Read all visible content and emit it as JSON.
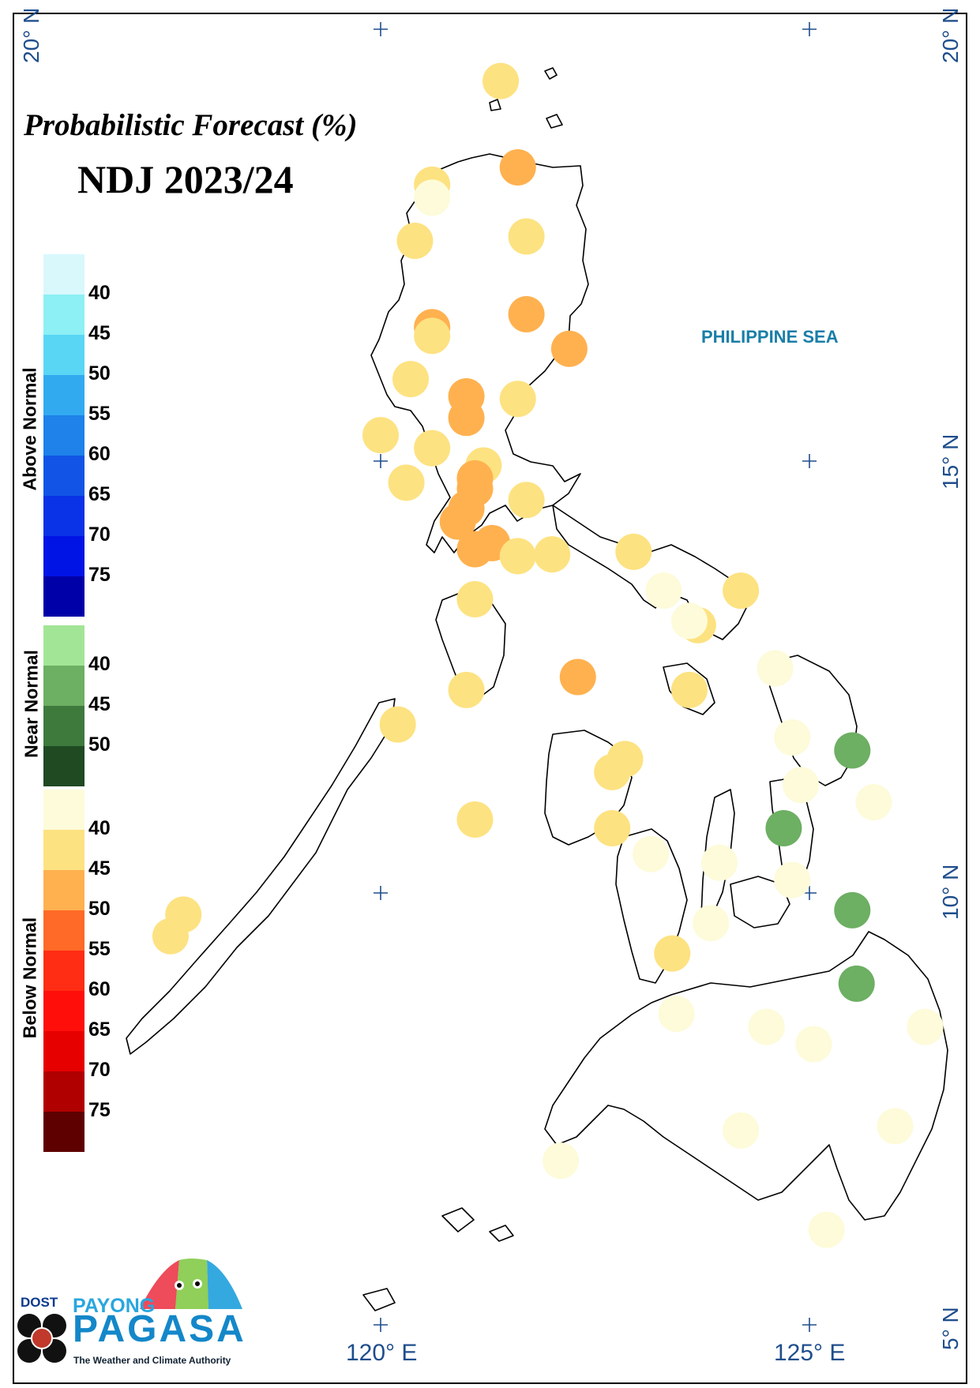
{
  "title": {
    "line1": "Probabilistic Forecast (%)",
    "line2": "NDJ 2023/24"
  },
  "sea_label": "PHILIPPINE SEA",
  "axes": {
    "lat_left_top": "20° N",
    "lat_right_top": "20° N",
    "lat_right_15": "15° N",
    "lat_right_10": "10° N",
    "lat_right_5": "5° N",
    "lon_120": "120° E",
    "lon_125": "125° E"
  },
  "legend": {
    "above": {
      "label": "Above Normal",
      "colors": [
        "#d9f8fc",
        "#8cf0f5",
        "#5ad6f5",
        "#32aaf0",
        "#1e82ea",
        "#1255e6",
        "#0a32e6",
        "#0014e6",
        "#0000a8"
      ],
      "ticks": [
        "40",
        "45",
        "50",
        "55",
        "60",
        "65",
        "70",
        "75"
      ]
    },
    "near": {
      "label": "Near Normal",
      "colors": [
        "#a3e596",
        "#6daf63",
        "#3f7a3d",
        "#1f4a22"
      ],
      "ticks": [
        "40",
        "45",
        "50"
      ]
    },
    "below": {
      "label": "Below Normal",
      "colors": [
        "#fdfbd9",
        "#fde281",
        "#ffb14f",
        "#ff6a28",
        "#ff2d14",
        "#ff0e0a",
        "#e60000",
        "#b00000",
        "#5e0000"
      ],
      "ticks": [
        "40",
        "45",
        "50",
        "55",
        "60",
        "65",
        "70",
        "75"
      ]
    }
  },
  "logo": {
    "dost": "DOST",
    "payong": "PAYONG",
    "pagasa": "PAGASA",
    "tagline": "The Weather and Climate Authority"
  },
  "stations": [
    {
      "lon": 121.4,
      "lat": 19.4,
      "category": "below",
      "pct": 42
    },
    {
      "lon": 121.6,
      "lat": 18.4,
      "category": "below",
      "pct": 47
    },
    {
      "lon": 120.6,
      "lat": 18.2,
      "category": "below",
      "pct": 42
    },
    {
      "lon": 120.6,
      "lat": 18.05,
      "category": "below",
      "pct": 38
    },
    {
      "lon": 120.4,
      "lat": 17.55,
      "category": "below",
      "pct": 42
    },
    {
      "lon": 121.7,
      "lat": 17.6,
      "category": "below",
      "pct": 42
    },
    {
      "lon": 121.7,
      "lat": 16.7,
      "category": "below",
      "pct": 47
    },
    {
      "lon": 120.6,
      "lat": 16.55,
      "category": "below",
      "pct": 47
    },
    {
      "lon": 120.6,
      "lat": 16.45,
      "category": "below",
      "pct": 42
    },
    {
      "lon": 122.2,
      "lat": 16.3,
      "category": "below",
      "pct": 47
    },
    {
      "lon": 120.35,
      "lat": 15.95,
      "category": "below",
      "pct": 42
    },
    {
      "lon": 121.0,
      "lat": 15.75,
      "category": "below",
      "pct": 47
    },
    {
      "lon": 121.6,
      "lat": 15.72,
      "category": "below",
      "pct": 42
    },
    {
      "lon": 121.0,
      "lat": 15.5,
      "category": "below",
      "pct": 47
    },
    {
      "lon": 120.0,
      "lat": 15.3,
      "category": "below",
      "pct": 42
    },
    {
      "lon": 120.6,
      "lat": 15.15,
      "category": "below",
      "pct": 42
    },
    {
      "lon": 121.2,
      "lat": 14.95,
      "category": "below",
      "pct": 42
    },
    {
      "lon": 121.1,
      "lat": 14.8,
      "category": "below",
      "pct": 47
    },
    {
      "lon": 121.1,
      "lat": 14.68,
      "category": "below",
      "pct": 47
    },
    {
      "lon": 120.3,
      "lat": 14.75,
      "category": "below",
      "pct": 42
    },
    {
      "lon": 121.7,
      "lat": 14.55,
      "category": "below",
      "pct": 42
    },
    {
      "lon": 121.0,
      "lat": 14.45,
      "category": "below",
      "pct": 47
    },
    {
      "lon": 120.9,
      "lat": 14.3,
      "category": "below",
      "pct": 47
    },
    {
      "lon": 121.3,
      "lat": 14.05,
      "category": "below",
      "pct": 47
    },
    {
      "lon": 121.1,
      "lat": 13.98,
      "category": "below",
      "pct": 47
    },
    {
      "lon": 121.6,
      "lat": 13.9,
      "category": "below",
      "pct": 42
    },
    {
      "lon": 122.0,
      "lat": 13.92,
      "category": "below",
      "pct": 42
    },
    {
      "lon": 122.95,
      "lat": 13.95,
      "category": "below",
      "pct": 42
    },
    {
      "lon": 121.1,
      "lat": 13.4,
      "category": "below",
      "pct": 42
    },
    {
      "lon": 123.3,
      "lat": 13.5,
      "category": "below",
      "pct": 38
    },
    {
      "lon": 124.2,
      "lat": 13.5,
      "category": "below",
      "pct": 42
    },
    {
      "lon": 123.7,
      "lat": 13.1,
      "category": "below",
      "pct": 42
    },
    {
      "lon": 123.6,
      "lat": 13.15,
      "category": "below",
      "pct": 38
    },
    {
      "lon": 122.3,
      "lat": 12.5,
      "category": "below",
      "pct": 47
    },
    {
      "lon": 121.0,
      "lat": 12.35,
      "category": "below",
      "pct": 42
    },
    {
      "lon": 123.6,
      "lat": 12.35,
      "category": "below",
      "pct": 42
    },
    {
      "lon": 124.6,
      "lat": 12.6,
      "category": "below",
      "pct": 38
    },
    {
      "lon": 120.2,
      "lat": 11.95,
      "category": "below",
      "pct": 42
    },
    {
      "lon": 124.8,
      "lat": 11.8,
      "category": "below",
      "pct": 38
    },
    {
      "lon": 125.5,
      "lat": 11.65,
      "category": "near",
      "pct": 40
    },
    {
      "lon": 122.85,
      "lat": 11.55,
      "category": "below",
      "pct": 42
    },
    {
      "lon": 122.7,
      "lat": 11.4,
      "category": "below",
      "pct": 42
    },
    {
      "lon": 124.9,
      "lat": 11.25,
      "category": "below",
      "pct": 38
    },
    {
      "lon": 125.75,
      "lat": 11.05,
      "category": "below",
      "pct": 38
    },
    {
      "lon": 121.1,
      "lat": 10.85,
      "category": "below",
      "pct": 42
    },
    {
      "lon": 122.7,
      "lat": 10.75,
      "category": "below",
      "pct": 42
    },
    {
      "lon": 124.7,
      "lat": 10.75,
      "category": "near",
      "pct": 40
    },
    {
      "lon": 123.15,
      "lat": 10.45,
      "category": "below",
      "pct": 38
    },
    {
      "lon": 123.95,
      "lat": 10.35,
      "category": "below",
      "pct": 38
    },
    {
      "lon": 124.8,
      "lat": 10.15,
      "category": "below",
      "pct": 38
    },
    {
      "lon": 125.5,
      "lat": 9.8,
      "category": "near",
      "pct": 40
    },
    {
      "lon": 117.7,
      "lat": 9.75,
      "category": "below",
      "pct": 42
    },
    {
      "lon": 117.55,
      "lat": 9.5,
      "category": "below",
      "pct": 42
    },
    {
      "lon": 123.85,
      "lat": 9.65,
      "category": "below",
      "pct": 38
    },
    {
      "lon": 123.4,
      "lat": 9.3,
      "category": "below",
      "pct": 42
    },
    {
      "lon": 125.55,
      "lat": 8.95,
      "category": "near",
      "pct": 40
    },
    {
      "lon": 123.45,
      "lat": 8.6,
      "category": "below",
      "pct": 38
    },
    {
      "lon": 124.5,
      "lat": 8.45,
      "category": "below",
      "pct": 38
    },
    {
      "lon": 126.35,
      "lat": 8.45,
      "category": "below",
      "pct": 38
    },
    {
      "lon": 125.05,
      "lat": 8.25,
      "category": "below",
      "pct": 38
    },
    {
      "lon": 124.2,
      "lat": 7.25,
      "category": "below",
      "pct": 38
    },
    {
      "lon": 126.0,
      "lat": 7.3,
      "category": "below",
      "pct": 38
    },
    {
      "lon": 122.1,
      "lat": 6.9,
      "category": "below",
      "pct": 38
    },
    {
      "lon": 125.2,
      "lat": 6.1,
      "category": "below",
      "pct": 38
    }
  ]
}
